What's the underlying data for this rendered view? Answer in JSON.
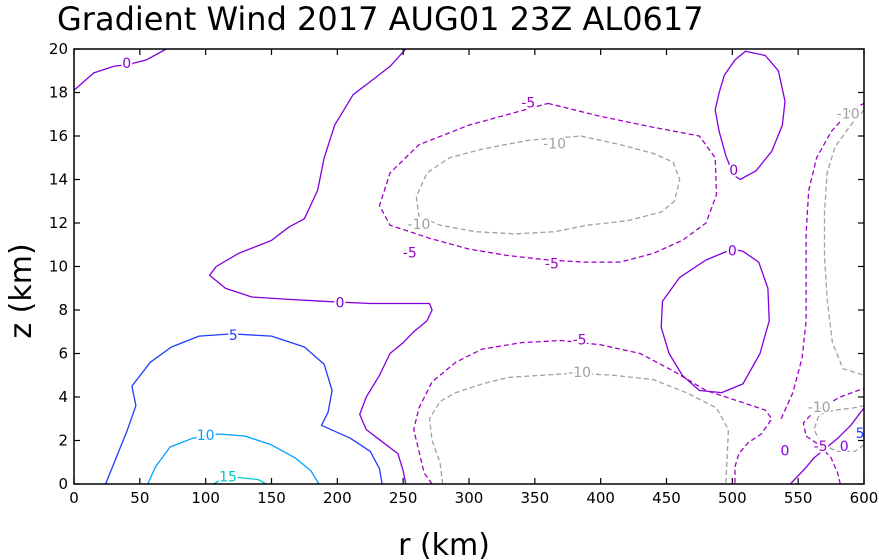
{
  "chart_data": {
    "type": "contour",
    "title": "Gradient Wind 2017 AUG01 23Z  AL0617",
    "xlabel": "r (km)",
    "ylabel": "z (km)",
    "xlim": [
      0,
      600
    ],
    "ylim": [
      0,
      20
    ],
    "x_ticks": [
      "0",
      "50",
      "100",
      "150",
      "200",
      "250",
      "300",
      "350",
      "400",
      "450",
      "500",
      "550",
      "600"
    ],
    "y_ticks": [
      "0",
      "2",
      "4",
      "6",
      "8",
      "10",
      "12",
      "14",
      "16",
      "18",
      "20"
    ],
    "grid": false,
    "colors": {
      "neg10": "#a0a0a0",
      "neg5": "#a000c8",
      "zero": "#8200dc",
      "pos5": "#1e3cff",
      "pos10": "#00a0ff",
      "pos15": "#00c8c8"
    },
    "contours": [
      {
        "level": "0",
        "color_key": "zero",
        "dashed": false,
        "points": [
          [
            0,
            18.1
          ],
          [
            15,
            18.9
          ],
          [
            30,
            19.2
          ],
          [
            42,
            19.3
          ],
          [
            55,
            19.5
          ],
          [
            70,
            20.0
          ]
        ]
      },
      {
        "level": "0",
        "color_key": "zero",
        "dashed": false,
        "points": [
          [
            252,
            20.0
          ],
          [
            240,
            19.2
          ],
          [
            225,
            18.5
          ],
          [
            212,
            17.9
          ],
          [
            198,
            16.5
          ],
          [
            190,
            15.0
          ],
          [
            185,
            13.5
          ],
          [
            175,
            12.2
          ],
          [
            163,
            11.8
          ],
          [
            150,
            11.2
          ],
          [
            125,
            10.6
          ],
          [
            108,
            10.0
          ],
          [
            103,
            9.6
          ],
          [
            115,
            9.0
          ],
          [
            135,
            8.6
          ],
          [
            160,
            8.5
          ],
          [
            190,
            8.4
          ],
          [
            225,
            8.3
          ],
          [
            255,
            8.3
          ],
          [
            270,
            8.3
          ],
          [
            272,
            8.0
          ],
          [
            268,
            7.5
          ],
          [
            258,
            7.0
          ],
          [
            250,
            6.5
          ],
          [
            240,
            6.0
          ],
          [
            232,
            5.0
          ],
          [
            222,
            4.0
          ],
          [
            217,
            3.2
          ],
          [
            222,
            2.5
          ],
          [
            235,
            1.9
          ],
          [
            246,
            1.4
          ],
          [
            250,
            0.6
          ],
          [
            252,
            0.0
          ]
        ]
      },
      {
        "level": "0",
        "color_key": "zero",
        "dashed": false,
        "points": [
          [
            501,
            14.2
          ],
          [
            495,
            15.1
          ],
          [
            490,
            16.2
          ],
          [
            487,
            17.2
          ],
          [
            490,
            18.0
          ],
          [
            494,
            18.8
          ],
          [
            502,
            19.5
          ],
          [
            510,
            19.9
          ],
          [
            525,
            19.7
          ],
          [
            535,
            19.0
          ],
          [
            540,
            17.6
          ],
          [
            538,
            16.5
          ],
          [
            530,
            15.3
          ],
          [
            518,
            14.4
          ],
          [
            506,
            14.0
          ],
          [
            501,
            14.2
          ]
        ]
      },
      {
        "level": "0",
        "color_key": "zero",
        "dashed": false,
        "points": [
          [
            500,
            10.8
          ],
          [
            480,
            10.3
          ],
          [
            460,
            9.5
          ],
          [
            447,
            8.4
          ],
          [
            446,
            7.2
          ],
          [
            452,
            6.0
          ],
          [
            462,
            5.0
          ],
          [
            475,
            4.3
          ],
          [
            492,
            4.2
          ],
          [
            508,
            4.6
          ],
          [
            521,
            6.0
          ],
          [
            528,
            7.5
          ],
          [
            527,
            9.0
          ],
          [
            520,
            10.2
          ],
          [
            508,
            10.7
          ],
          [
            500,
            10.8
          ]
        ]
      },
      {
        "level": "0",
        "color_key": "zero",
        "dashed": false,
        "points": [
          [
            544,
            0.0
          ],
          [
            555,
            0.7
          ],
          [
            562,
            1.2
          ],
          [
            570,
            1.6
          ],
          [
            580,
            2.1
          ],
          [
            590,
            2.7
          ],
          [
            600,
            3.5
          ]
        ]
      },
      {
        "level": "-5",
        "color_key": "neg5",
        "dashed": true,
        "points": [
          [
            360,
            17.5
          ],
          [
            400,
            16.9
          ],
          [
            440,
            16.4
          ],
          [
            475,
            16.0
          ],
          [
            487,
            15.0
          ],
          [
            488,
            13.3
          ],
          [
            480,
            12.0
          ],
          [
            462,
            11.2
          ],
          [
            440,
            10.6
          ],
          [
            415,
            10.2
          ],
          [
            387,
            10.2
          ],
          [
            360,
            10.3
          ],
          [
            330,
            10.5
          ],
          [
            300,
            10.8
          ],
          [
            270,
            11.3
          ],
          [
            240,
            11.9
          ],
          [
            232,
            12.8
          ],
          [
            240,
            14.3
          ],
          [
            262,
            15.6
          ],
          [
            300,
            16.5
          ],
          [
            330,
            17.0
          ],
          [
            360,
            17.5
          ]
        ]
      },
      {
        "level": "-5",
        "color_key": "neg5",
        "dashed": true,
        "points": [
          [
            272,
            0.0
          ],
          [
            266,
            0.5
          ],
          [
            262,
            1.5
          ],
          [
            258,
            2.5
          ],
          [
            262,
            3.5
          ],
          [
            272,
            4.7
          ],
          [
            290,
            5.6
          ],
          [
            310,
            6.2
          ],
          [
            340,
            6.5
          ],
          [
            370,
            6.6
          ],
          [
            400,
            6.4
          ],
          [
            430,
            6.0
          ],
          [
            455,
            5.2
          ],
          [
            480,
            4.3
          ],
          [
            510,
            3.7
          ],
          [
            525,
            3.4
          ],
          [
            530,
            3.0
          ],
          [
            522,
            2.3
          ],
          [
            512,
            1.9
          ],
          [
            505,
            1.4
          ],
          [
            502,
            0.8
          ],
          [
            502,
            0.0
          ]
        ]
      },
      {
        "level": "-5",
        "color_key": "neg5",
        "dashed": true,
        "points": [
          [
            537,
            3.0
          ],
          [
            546,
            4.2
          ],
          [
            553,
            5.8
          ],
          [
            556,
            7.5
          ],
          [
            556,
            9.5
          ],
          [
            556,
            11.5
          ],
          [
            558,
            13.5
          ],
          [
            564,
            15.0
          ],
          [
            575,
            16.2
          ],
          [
            590,
            17.2
          ],
          [
            600,
            17.5
          ]
        ]
      },
      {
        "level": "-5",
        "color_key": "neg5",
        "dashed": true,
        "points": [
          [
            582,
            0.0
          ],
          [
            580,
            0.5
          ],
          [
            575,
            1.2
          ],
          [
            566,
            1.8
          ],
          [
            556,
            2.2
          ],
          [
            554,
            2.8
          ],
          [
            560,
            3.2
          ],
          [
            570,
            3.6
          ],
          [
            582,
            4.0
          ],
          [
            600,
            4.4
          ]
        ]
      },
      {
        "level": "-10",
        "color_key": "neg10",
        "dashed": true,
        "points": [
          [
            385,
            16.0
          ],
          [
            415,
            15.6
          ],
          [
            440,
            15.2
          ],
          [
            455,
            14.8
          ],
          [
            460,
            14.0
          ],
          [
            456,
            13.0
          ],
          [
            446,
            12.5
          ],
          [
            420,
            12.1
          ],
          [
            390,
            11.9
          ],
          [
            365,
            11.6
          ],
          [
            335,
            11.5
          ],
          [
            305,
            11.6
          ],
          [
            278,
            11.9
          ],
          [
            262,
            12.3
          ],
          [
            260,
            13.2
          ],
          [
            268,
            14.3
          ],
          [
            285,
            15.0
          ],
          [
            310,
            15.4
          ],
          [
            345,
            15.8
          ],
          [
            385,
            16.0
          ]
        ]
      },
      {
        "level": "-10",
        "color_key": "neg10",
        "dashed": true,
        "points": [
          [
            280,
            0.0
          ],
          [
            278,
            1.0
          ],
          [
            272,
            2.0
          ],
          [
            270,
            3.0
          ],
          [
            278,
            3.8
          ],
          [
            290,
            4.2
          ],
          [
            310,
            4.6
          ],
          [
            330,
            4.9
          ],
          [
            355,
            5.0
          ],
          [
            380,
            5.1
          ],
          [
            410,
            5.0
          ],
          [
            440,
            4.8
          ],
          [
            465,
            4.2
          ],
          [
            488,
            3.5
          ],
          [
            497,
            2.5
          ],
          [
            496,
            1.2
          ],
          [
            495,
            0.0
          ]
        ]
      },
      {
        "level": "-10",
        "color_key": "neg10",
        "dashed": true,
        "points": [
          [
            600,
            17.2
          ],
          [
            590,
            16.5
          ],
          [
            578,
            15.5
          ],
          [
            572,
            14.3
          ],
          [
            570,
            12.5
          ],
          [
            570,
            10.5
          ],
          [
            572,
            8.5
          ],
          [
            576,
            6.5
          ],
          [
            584,
            5.3
          ],
          [
            600,
            5.0
          ]
        ]
      },
      {
        "level": "-10",
        "color_key": "neg10",
        "dashed": true,
        "points": [
          [
            600,
            1.8
          ],
          [
            593,
            1.5
          ],
          [
            580,
            1.5
          ],
          [
            568,
            1.8
          ],
          [
            562,
            2.5
          ],
          [
            566,
            3.2
          ],
          [
            578,
            3.4
          ],
          [
            592,
            3.5
          ],
          [
            600,
            3.6
          ]
        ]
      },
      {
        "level": "5",
        "color_key": "pos5",
        "dashed": false,
        "points": [
          [
            24,
            0.0
          ],
          [
            30,
            0.9
          ],
          [
            40,
            2.4
          ],
          [
            47,
            3.6
          ],
          [
            44,
            4.5
          ],
          [
            58,
            5.6
          ],
          [
            74,
            6.3
          ],
          [
            95,
            6.8
          ],
          [
            120,
            6.9
          ],
          [
            150,
            6.8
          ],
          [
            175,
            6.3
          ],
          [
            190,
            5.5
          ],
          [
            196,
            4.3
          ],
          [
            193,
            3.3
          ],
          [
            188,
            2.7
          ],
          [
            210,
            2.1
          ],
          [
            225,
            1.5
          ],
          [
            232,
            0.7
          ],
          [
            234,
            0.0
          ]
        ]
      },
      {
        "level": "10",
        "color_key": "pos10",
        "dashed": false,
        "points": [
          [
            56,
            0.0
          ],
          [
            62,
            0.8
          ],
          [
            73,
            1.7
          ],
          [
            90,
            2.1
          ],
          [
            110,
            2.3
          ],
          [
            130,
            2.2
          ],
          [
            150,
            1.8
          ],
          [
            168,
            1.2
          ],
          [
            180,
            0.6
          ],
          [
            186,
            0.0
          ]
        ]
      },
      {
        "level": "15",
        "color_key": "pos15",
        "dashed": false,
        "points": [
          [
            106,
            0.0
          ],
          [
            112,
            0.2
          ],
          [
            125,
            0.3
          ],
          [
            140,
            0.2
          ],
          [
            146,
            0.0
          ]
        ]
      }
    ],
    "contour_labels": [
      {
        "text": "0",
        "x": 40,
        "y": 19.3,
        "color_key": "zero"
      },
      {
        "text": "-5",
        "x": 345,
        "y": 17.5,
        "color_key": "neg5"
      },
      {
        "text": "-10",
        "x": 365,
        "y": 15.6,
        "color_key": "neg10"
      },
      {
        "text": "-10",
        "x": 262,
        "y": 11.9,
        "color_key": "neg10"
      },
      {
        "text": "-5",
        "x": 255,
        "y": 10.6,
        "color_key": "neg5"
      },
      {
        "text": "-5",
        "x": 363,
        "y": 10.1,
        "color_key": "neg5"
      },
      {
        "text": "0",
        "x": 202,
        "y": 8.3,
        "color_key": "zero"
      },
      {
        "text": "5",
        "x": 121,
        "y": 6.8,
        "color_key": "pos5"
      },
      {
        "text": "-5",
        "x": 384,
        "y": 6.6,
        "color_key": "neg5"
      },
      {
        "text": "-10",
        "x": 384,
        "y": 5.1,
        "color_key": "neg10"
      },
      {
        "text": "10",
        "x": 100,
        "y": 2.2,
        "color_key": "pos10"
      },
      {
        "text": "15",
        "x": 117,
        "y": 0.3,
        "color_key": "pos15"
      },
      {
        "text": "0",
        "x": 501,
        "y": 14.4,
        "color_key": "zero"
      },
      {
        "text": "-10",
        "x": 588,
        "y": 17.0,
        "color_key": "neg10"
      },
      {
        "text": "0",
        "x": 500,
        "y": 10.7,
        "color_key": "zero"
      },
      {
        "text": "-10",
        "x": 566,
        "y": 3.5,
        "color_key": "neg10"
      },
      {
        "text": "-5",
        "x": 567,
        "y": 1.7,
        "color_key": "neg5"
      },
      {
        "text": "0",
        "x": 540,
        "y": 1.5,
        "color_key": "zero"
      },
      {
        "text": "0",
        "x": 585,
        "y": 1.7,
        "color_key": "zero"
      },
      {
        "text": "5",
        "x": 597,
        "y": 2.3,
        "color_key": "pos5"
      }
    ]
  }
}
